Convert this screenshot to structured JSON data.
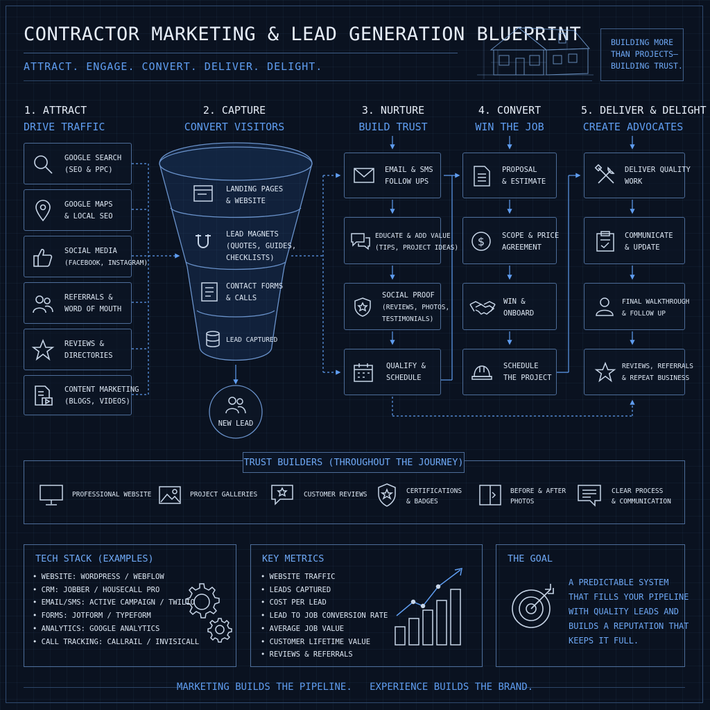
{
  "header": {
    "title": "Contractor Marketing & Lead Generation Blueprint",
    "subtitle": "Attract. Engage. Convert. Deliver. Delight.",
    "tagline": [
      "Building more",
      "than projects—",
      "building trust."
    ]
  },
  "columns": {
    "attract": {
      "title": "1. Attract",
      "subtitle": "Drive Traffic",
      "items": [
        {
          "icon": "search-icon",
          "lines": [
            "Google Search",
            "(SEO & PPC)"
          ]
        },
        {
          "icon": "map-pin-icon",
          "lines": [
            "Google Maps",
            "& Local SEO"
          ]
        },
        {
          "icon": "thumbs-up-icon",
          "lines": [
            "Social Media",
            "(Facebook, Instagram)"
          ]
        },
        {
          "icon": "people-icon",
          "lines": [
            "Referrals &",
            "Word of Mouth"
          ]
        },
        {
          "icon": "star-icon",
          "lines": [
            "Reviews &",
            "Directories"
          ]
        },
        {
          "icon": "content-icon",
          "lines": [
            "Content Marketing",
            "(Blogs, Videos)"
          ]
        }
      ]
    },
    "capture": {
      "title": "2. Capture",
      "subtitle": "Convert Visitors",
      "items": [
        {
          "icon": "browser-icon",
          "lines": [
            "Landing Pages",
            "& Website"
          ]
        },
        {
          "icon": "magnet-icon",
          "lines": [
            "Lead Magnets",
            "(Quotes, Guides,",
            "Checklists)"
          ]
        },
        {
          "icon": "form-icon",
          "lines": [
            "Contact Forms",
            "& Calls"
          ]
        },
        {
          "icon": "database-icon",
          "lines": [
            "Lead Captured"
          ]
        }
      ],
      "result": "New Lead"
    },
    "nurture": {
      "title": "3. Nurture",
      "subtitle": "Build Trust",
      "items": [
        {
          "icon": "envelope-icon",
          "lines": [
            "Email & SMS",
            "Follow Ups"
          ]
        },
        {
          "icon": "chat-icon",
          "lines": [
            "Educate & Add Value",
            "(Tips, Project Ideas)"
          ]
        },
        {
          "icon": "shield-icon",
          "lines": [
            "Social Proof",
            "(Reviews, Photos,",
            "Testimonials)"
          ]
        },
        {
          "icon": "calendar-icon",
          "lines": [
            "Qualify &",
            "Schedule"
          ]
        }
      ]
    },
    "convert": {
      "title": "4. Convert",
      "subtitle": "Win the Job",
      "items": [
        {
          "icon": "document-icon",
          "lines": [
            "Proposal",
            "& Estimate"
          ]
        },
        {
          "icon": "dollar-icon",
          "lines": [
            "Scope & Price",
            "Agreement"
          ]
        },
        {
          "icon": "handshake-icon",
          "lines": [
            "Win &",
            "Onboard"
          ]
        },
        {
          "icon": "hard-hat-icon",
          "lines": [
            "Schedule",
            "the Project"
          ]
        }
      ]
    },
    "deliver": {
      "title": "5. Deliver & Delight",
      "subtitle": "Create Advocates",
      "items": [
        {
          "icon": "tools-icon",
          "lines": [
            "Deliver Quality",
            "Work"
          ]
        },
        {
          "icon": "clipboard-icon",
          "lines": [
            "Communicate",
            "& Update"
          ]
        },
        {
          "icon": "person-icon",
          "lines": [
            "Final Walkthrough",
            "& Follow Up"
          ]
        },
        {
          "icon": "star-icon",
          "lines": [
            "Reviews, Referrals",
            "& Repeat Business"
          ]
        }
      ]
    }
  },
  "trust": {
    "title": "Trust Builders (Throughout the Journey)",
    "items": [
      {
        "icon": "monitor-icon",
        "lines": [
          "Professional Website"
        ]
      },
      {
        "icon": "image-icon",
        "lines": [
          "Project Galleries"
        ]
      },
      {
        "icon": "review-bubble-icon",
        "lines": [
          "Customer Reviews"
        ]
      },
      {
        "icon": "badge-icon",
        "lines": [
          "Certifications",
          "& Badges"
        ]
      },
      {
        "icon": "before-after-icon",
        "lines": [
          "Before & After",
          "Photos"
        ]
      },
      {
        "icon": "speech-icon",
        "lines": [
          "Clear Process",
          "& Communication"
        ]
      }
    ]
  },
  "tech": {
    "title": "Tech Stack (Examples)",
    "items": [
      "• Website: WordPress / Webflow",
      "• CRM: Jobber / Housecall Pro",
      "• Email/SMS: Active Campaign / Twilio",
      "• Forms: Jotform / Typeform",
      "• Analytics: Google Analytics",
      "• Call Tracking: CallRail / Invisicall"
    ]
  },
  "metrics": {
    "title": "Key Metrics",
    "items": [
      "• Website Traffic",
      "• Leads Captured",
      "• Cost Per Lead",
      "• Lead to Job Conversion Rate",
      "• Average Job Value",
      "• Customer Lifetime Value",
      "• Reviews & Referrals"
    ]
  },
  "goal": {
    "title": "The Goal",
    "lines": [
      "A predictable system",
      "that fills your pipeline",
      "with quality leads and",
      "builds a reputation that",
      "keeps it full."
    ]
  },
  "footer": "Marketing builds the pipeline.   Experience builds the brand.",
  "colors": {
    "accent": "#5f9df0",
    "line": "#4d6d99",
    "background": "#0a1220",
    "text": "#dce6f2"
  }
}
